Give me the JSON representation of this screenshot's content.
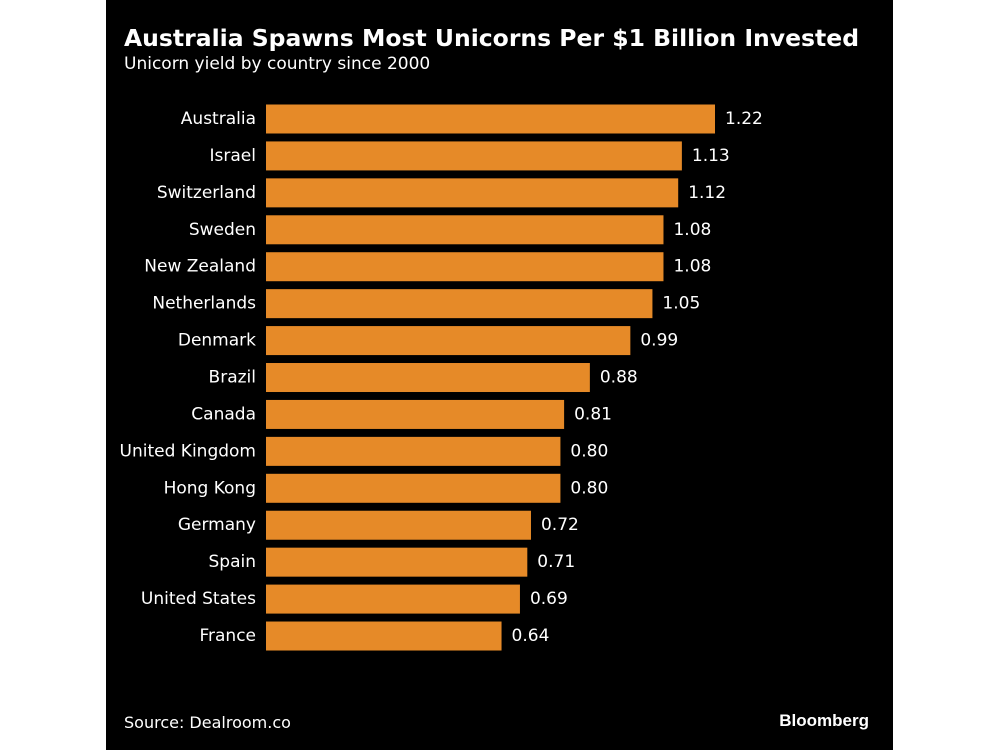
{
  "header": {
    "title": "Australia Spawns Most Unicorns Per $1 Billion Invested",
    "subtitle": "Unicorn yield by country since 2000"
  },
  "footer": {
    "source": "Source: Dealroom.co",
    "brand": "Bloomberg"
  },
  "colors": {
    "background": "#000000",
    "bar": "#E68A28",
    "text": "#ffffff"
  },
  "chart_data": {
    "type": "bar",
    "orientation": "horizontal",
    "title": "Australia Spawns Most Unicorns Per $1 Billion Invested",
    "subtitle": "Unicorn yield by country since 2000",
    "categories": [
      "Australia",
      "Israel",
      "Switzerland",
      "Sweden",
      "New Zealand",
      "Netherlands",
      "Denmark",
      "Brazil",
      "Canada",
      "United Kingdom",
      "Hong Kong",
      "Germany",
      "Spain",
      "United States",
      "France"
    ],
    "values": [
      1.22,
      1.13,
      1.12,
      1.08,
      1.08,
      1.05,
      0.99,
      0.88,
      0.81,
      0.8,
      0.8,
      0.72,
      0.71,
      0.69,
      0.64
    ],
    "value_labels": [
      "1.22",
      "1.13",
      "1.12",
      "1.08",
      "1.08",
      "1.05",
      "0.99",
      "0.88",
      "0.81",
      "0.80",
      "0.80",
      "0.72",
      "0.71",
      "0.69",
      "0.64"
    ],
    "xlim": [
      0,
      1.22
    ],
    "grid": false,
    "legend": "none"
  }
}
